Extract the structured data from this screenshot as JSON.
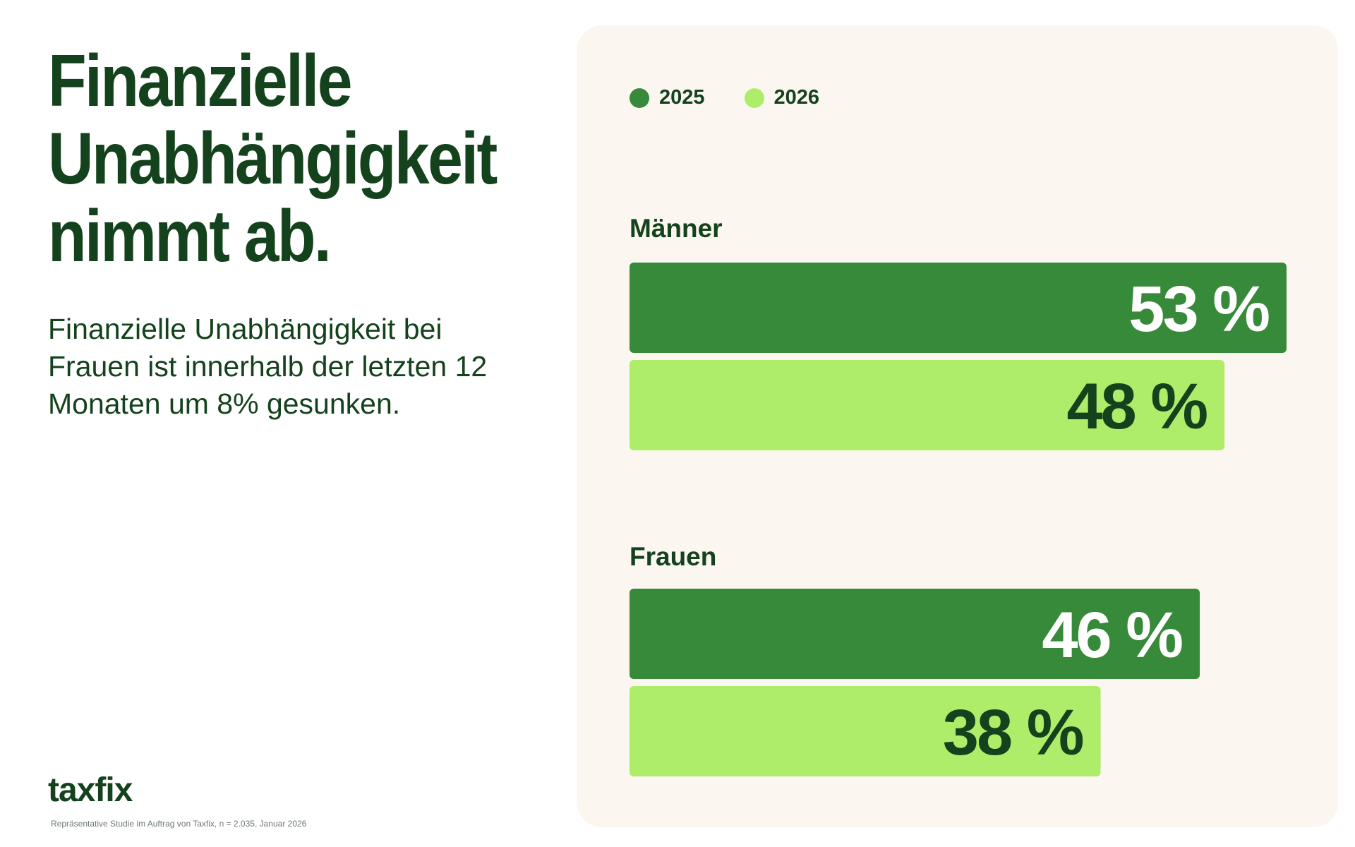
{
  "headline": {
    "line1": "Finanzielle",
    "line2": "Unabhängigkeit",
    "line3": "nimmt ab."
  },
  "subtext": "Finanzielle Unabhängigkeit bei Frauen ist innerhalb der letzten 12 Monaten um 8% gesunken.",
  "logo_text": "taxfix",
  "footnote": "Repräsentative Studie im Auftrag von Taxfix, n = 2.035, Januar 2026",
  "colors": {
    "text": "#14421c",
    "panel": "#fbf7f0",
    "series_2025": "#378a3a",
    "series_2026": "#aeed6a",
    "label_on_dark": "#ffffff",
    "label_on_light": "#14421c"
  },
  "chart_data": {
    "type": "bar",
    "orientation": "horizontal",
    "categories": [
      "Männer",
      "Frauen"
    ],
    "series": [
      {
        "name": "2025",
        "values": [
          53,
          46
        ],
        "labels": [
          "53 %",
          "46 %"
        ]
      },
      {
        "name": "2026",
        "values": [
          48,
          38
        ],
        "labels": [
          "48 %",
          "38 %"
        ]
      }
    ],
    "unit": "%",
    "legend": "top-left",
    "grid": false,
    "xlim": [
      0,
      53
    ]
  }
}
